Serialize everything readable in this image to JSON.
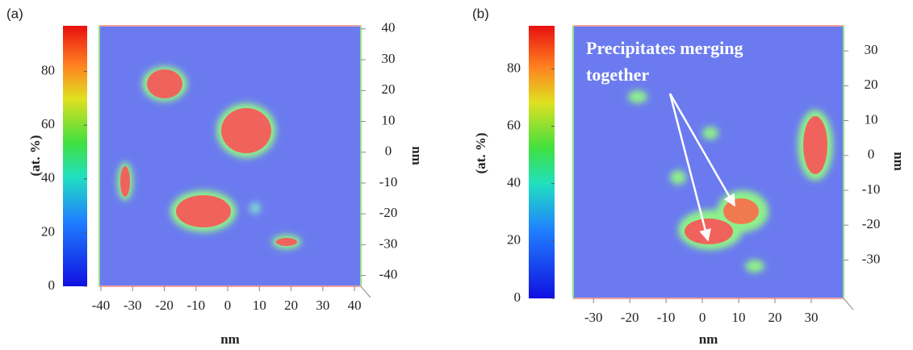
{
  "chart_data": [
    {
      "type": "heatmap",
      "panel_label": "(a)",
      "colorbar_label": "(at. %)",
      "clim": [
        0,
        97
      ],
      "colorbar_ticks": [
        0,
        20,
        40,
        60,
        80
      ],
      "x_label": "nm",
      "xlim": [
        -40.5,
        42
      ],
      "xticks": [
        -40,
        -30,
        -20,
        -10,
        0,
        10,
        20,
        30,
        40
      ],
      "y_label": "nm",
      "ylim": [
        -43.5,
        41
      ],
      "yticks": [
        40,
        30,
        20,
        10,
        0,
        -10,
        -20,
        -30,
        -40
      ]
    },
    {
      "type": "heatmap",
      "panel_label": "(b)",
      "colorbar_label": "(at. %)",
      "clim": [
        0,
        95
      ],
      "colorbar_ticks": [
        0,
        20,
        40,
        60,
        80
      ],
      "x_label": "nm",
      "xlim": [
        -35.6,
        38.9
      ],
      "xticks": [
        -30,
        -20,
        -10,
        0,
        10,
        20,
        30
      ],
      "y_label": "nm",
      "ylim": [
        -41,
        37.2
      ],
      "yticks": [
        30,
        20,
        10,
        0,
        -10,
        -20,
        -30
      ],
      "annotation": [
        "Precipitates merging",
        "together"
      ]
    }
  ]
}
